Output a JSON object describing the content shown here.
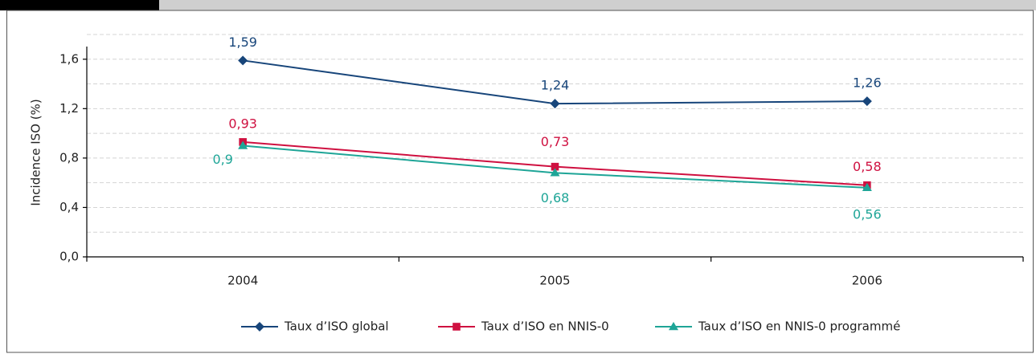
{
  "chart_data": {
    "type": "line",
    "y_label": "Incidence ISO  (%)",
    "categories": [
      "2004",
      "2005",
      "2006"
    ],
    "series": [
      {
        "name": "Taux d’ISO global",
        "color": "#17457a",
        "marker": "diamond",
        "values": [
          1.59,
          1.24,
          1.26
        ],
        "value_labels": [
          "1,59",
          "1,24",
          "1,26"
        ]
      },
      {
        "name": "Taux d’ISO en NNIS-0",
        "color": "#cf1040",
        "marker": "square",
        "values": [
          0.93,
          0.73,
          0.58
        ],
        "value_labels": [
          "0,93",
          "0,73",
          "0,58"
        ]
      },
      {
        "name": "Taux d’ISO en NNIS-0 programmé",
        "color": "#1ea597",
        "marker": "triangle",
        "values": [
          0.9,
          0.68,
          0.56
        ],
        "value_labels": [
          "0,9",
          "0,68",
          "0,56"
        ]
      }
    ],
    "ylim": [
      0,
      1.8
    ],
    "yticks": [
      {
        "value": 0,
        "label": "0,0"
      },
      {
        "value": 0.4,
        "label": "0,4"
      },
      {
        "value": 0.8,
        "label": "0,8"
      },
      {
        "value": 1.2,
        "label": "1,2"
      },
      {
        "value": 1.6,
        "label": "1,6"
      }
    ],
    "minor_yticks": [
      0.2,
      0.6,
      1,
      1.4,
      1.8
    ],
    "grid": true
  }
}
